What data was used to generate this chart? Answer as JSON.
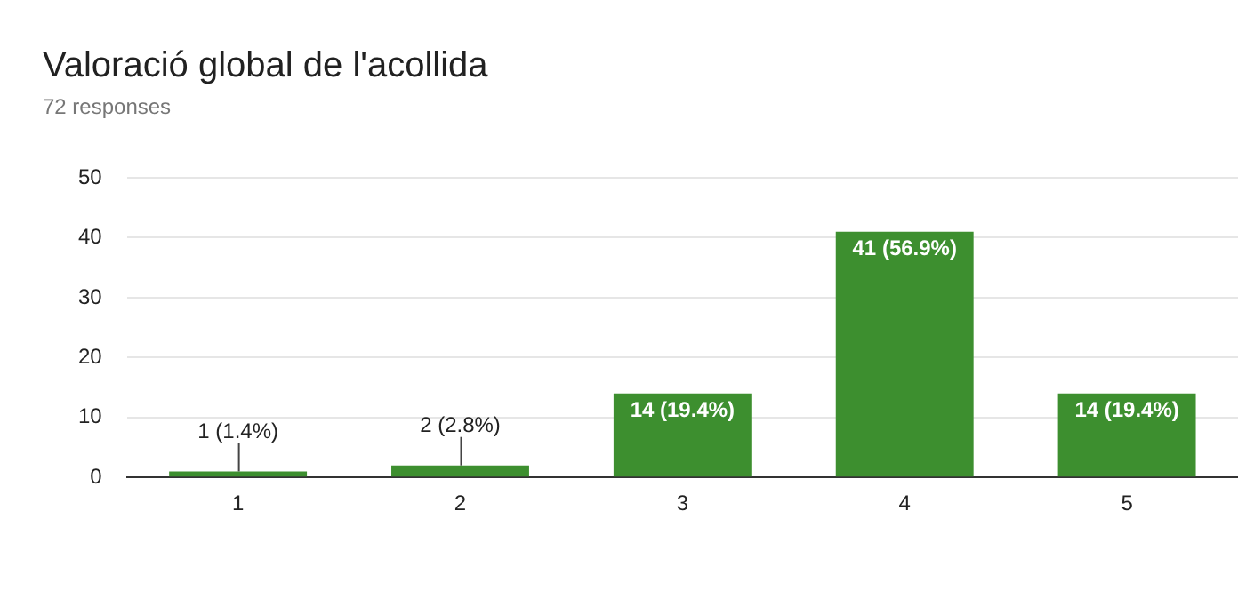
{
  "chart_data": {
    "type": "bar",
    "title": "Valoració global de l'acollida",
    "subtitle": "72 responses",
    "categories": [
      "1",
      "2",
      "3",
      "4",
      "5"
    ],
    "values": [
      1,
      2,
      14,
      41,
      14
    ],
    "value_labels": [
      "1 (1.4%)",
      "2 (2.8%)",
      "14 (19.4%)",
      "41 (56.9%)",
      "14 (19.4%)"
    ],
    "color": "#3d8f2f",
    "ylim": [
      0,
      50
    ],
    "yticks": [
      0,
      10,
      20,
      30,
      40,
      50
    ],
    "grid": "y",
    "legend": false
  }
}
